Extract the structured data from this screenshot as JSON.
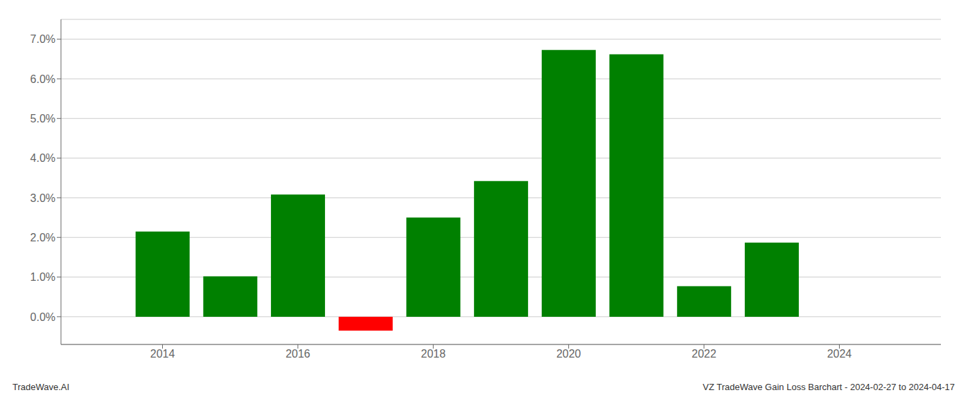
{
  "chart_data": {
    "type": "bar",
    "x": [
      2014,
      2015,
      2016,
      2017,
      2018,
      2019,
      2020,
      2021,
      2022,
      2023
    ],
    "values": [
      0.0215,
      0.0102,
      0.0308,
      -0.0035,
      0.025,
      0.0342,
      0.0673,
      0.0662,
      0.0077,
      0.0187
    ],
    "colors": [
      "#008000",
      "#008000",
      "#008000",
      "#ff0000",
      "#008000",
      "#008000",
      "#008000",
      "#008000",
      "#008000",
      "#008000"
    ],
    "xlim": [
      2012.5,
      2025.5
    ],
    "ylim": [
      -0.007,
      0.075
    ],
    "xticks": [
      2014,
      2016,
      2018,
      2020,
      2022,
      2024
    ],
    "yticks": [
      {
        "value": 0.0,
        "label": "0.0%"
      },
      {
        "value": 0.01,
        "label": "1.0%"
      },
      {
        "value": 0.02,
        "label": "2.0%"
      },
      {
        "value": 0.03,
        "label": "3.0%"
      },
      {
        "value": 0.04,
        "label": "4.0%"
      },
      {
        "value": 0.05,
        "label": "5.0%"
      },
      {
        "value": 0.06,
        "label": "6.0%"
      },
      {
        "value": 0.07,
        "label": "7.0%"
      }
    ],
    "grid": true,
    "annotations": [
      "TradeWave.AI",
      "VZ TradeWave Gain Loss Barchart - 2024-02-27 to 2024-04-17"
    ]
  }
}
